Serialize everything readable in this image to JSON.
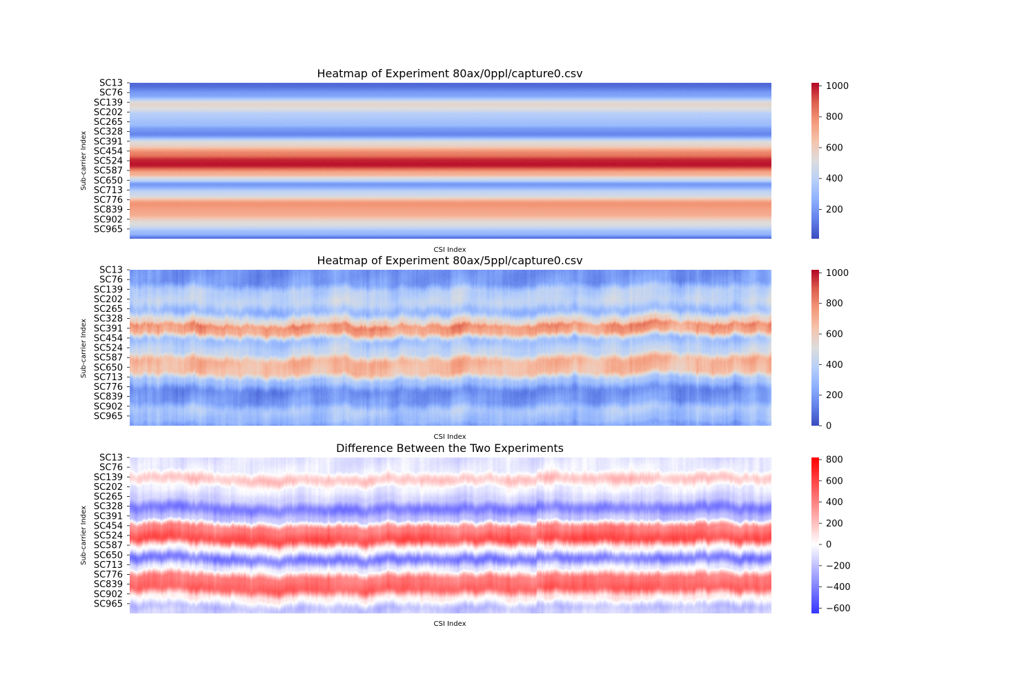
{
  "chart_data": [
    {
      "type": "heatmap",
      "title": "Heatmap of Experiment 80ax/0ppl/capture0.csv",
      "xlabel": "CSI Index",
      "ylabel": "Sub-carrier Index",
      "y_tick_labels": [
        "SC13",
        "SC76",
        "SC139",
        "SC202",
        "SC265",
        "SC328",
        "SC391",
        "SC454",
        "SC524",
        "SC587",
        "SC650",
        "SC713",
        "SC776",
        "SC839",
        "SC902",
        "SC965"
      ],
      "colormap": "coolwarm",
      "value_range": [
        10,
        1020
      ],
      "colorbar_ticks": [
        {
          "value": 1000,
          "label": "1000"
        },
        {
          "value": 800,
          "label": "800"
        },
        {
          "value": 600,
          "label": "600"
        },
        {
          "value": 400,
          "label": "400"
        },
        {
          "value": 200,
          "label": "200"
        }
      ],
      "row_profile": [
        {
          "sc": 13,
          "value": 80
        },
        {
          "sc": 76,
          "value": 220
        },
        {
          "sc": 139,
          "value": 560
        },
        {
          "sc": 170,
          "value": 500
        },
        {
          "sc": 202,
          "value": 380
        },
        {
          "sc": 265,
          "value": 320
        },
        {
          "sc": 300,
          "value": 200
        },
        {
          "sc": 328,
          "value": 150
        },
        {
          "sc": 391,
          "value": 550
        },
        {
          "sc": 454,
          "value": 820
        },
        {
          "sc": 500,
          "value": 980
        },
        {
          "sc": 524,
          "value": 1000
        },
        {
          "sc": 587,
          "value": 700
        },
        {
          "sc": 620,
          "value": 450
        },
        {
          "sc": 650,
          "value": 200
        },
        {
          "sc": 713,
          "value": 450
        },
        {
          "sc": 776,
          "value": 780
        },
        {
          "sc": 839,
          "value": 720
        },
        {
          "sc": 902,
          "value": 520
        },
        {
          "sc": 965,
          "value": 300
        },
        {
          "sc": 1000,
          "value": 90
        }
      ],
      "columns": []
    },
    {
      "type": "heatmap",
      "title": "Heatmap of Experiment 80ax/5ppl/capture0.csv",
      "xlabel": "CSI Index",
      "ylabel": "Sub-carrier Index",
      "y_tick_labels": [
        "SC13",
        "SC76",
        "SC139",
        "SC202",
        "SC265",
        "SC328",
        "SC391",
        "SC454",
        "SC524",
        "SC587",
        "SC650",
        "SC713",
        "SC776",
        "SC839",
        "SC902",
        "SC965"
      ],
      "colormap": "coolwarm",
      "value_range": [
        0,
        1020
      ],
      "colorbar_ticks": [
        {
          "value": 1000,
          "label": "1000"
        },
        {
          "value": 800,
          "label": "800"
        },
        {
          "value": 600,
          "label": "600"
        },
        {
          "value": 400,
          "label": "400"
        },
        {
          "value": 200,
          "label": "200"
        },
        {
          "value": 0,
          "label": "0"
        }
      ],
      "row_profile": [
        {
          "sc": 13,
          "value": 180
        },
        {
          "sc": 76,
          "value": 200
        },
        {
          "sc": 139,
          "value": 380
        },
        {
          "sc": 202,
          "value": 420
        },
        {
          "sc": 265,
          "value": 300
        },
        {
          "sc": 328,
          "value": 560
        },
        {
          "sc": 360,
          "value": 780
        },
        {
          "sc": 391,
          "value": 740
        },
        {
          "sc": 454,
          "value": 330
        },
        {
          "sc": 524,
          "value": 420
        },
        {
          "sc": 587,
          "value": 690
        },
        {
          "sc": 650,
          "value": 660
        },
        {
          "sc": 713,
          "value": 330
        },
        {
          "sc": 776,
          "value": 160
        },
        {
          "sc": 839,
          "value": 200
        },
        {
          "sc": 902,
          "value": 350
        },
        {
          "sc": 965,
          "value": 300
        },
        {
          "sc": 1000,
          "value": 220
        }
      ],
      "columns": []
    },
    {
      "type": "heatmap",
      "title": "Difference Between the Two Experiments",
      "xlabel": "CSI Index",
      "ylabel": "Sub-carrier Index",
      "y_tick_labels": [
        "SC13",
        "SC76",
        "SC139",
        "SC202",
        "SC265",
        "SC328",
        "SC391",
        "SC454",
        "SC524",
        "SC587",
        "SC650",
        "SC713",
        "SC776",
        "SC839",
        "SC902",
        "SC965"
      ],
      "colormap": "bwr",
      "value_range": [
        -650,
        820
      ],
      "colorbar_ticks": [
        {
          "value": 800,
          "label": "800"
        },
        {
          "value": 600,
          "label": "600"
        },
        {
          "value": 400,
          "label": "400"
        },
        {
          "value": 200,
          "label": "200"
        },
        {
          "value": 0,
          "label": "0"
        },
        {
          "value": -200,
          "label": "−200"
        },
        {
          "value": -400,
          "label": "−400"
        },
        {
          "value": -600,
          "label": "−600"
        }
      ],
      "row_profile": [
        {
          "sc": 13,
          "value": -90
        },
        {
          "sc": 76,
          "value": -60
        },
        {
          "sc": 139,
          "value": 180
        },
        {
          "sc": 202,
          "value": -50
        },
        {
          "sc": 265,
          "value": -150
        },
        {
          "sc": 328,
          "value": -420
        },
        {
          "sc": 391,
          "value": -200
        },
        {
          "sc": 454,
          "value": 400
        },
        {
          "sc": 524,
          "value": 560
        },
        {
          "sc": 587,
          "value": 0
        },
        {
          "sc": 650,
          "value": -420
        },
        {
          "sc": 713,
          "value": -60
        },
        {
          "sc": 776,
          "value": 420
        },
        {
          "sc": 839,
          "value": 500
        },
        {
          "sc": 902,
          "value": 40
        },
        {
          "sc": 965,
          "value": -200
        },
        {
          "sc": 1000,
          "value": -150
        }
      ],
      "columns": []
    }
  ]
}
